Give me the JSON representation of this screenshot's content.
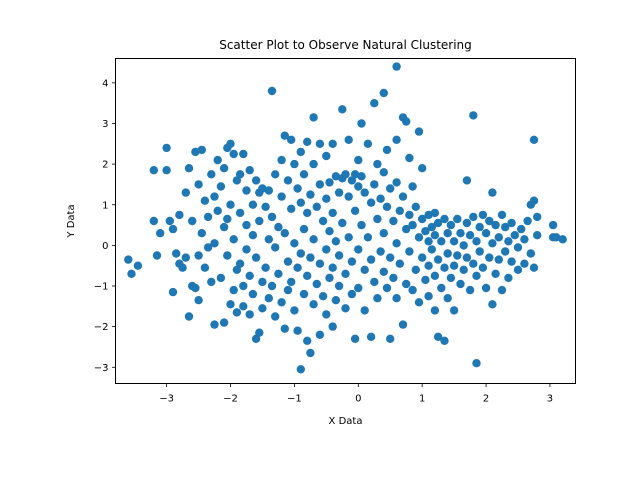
{
  "chart_data": {
    "type": "scatter",
    "title": "Scatter Plot to Observe Natural Clustering",
    "xlabel": "X Data",
    "ylabel": "Y Data",
    "xlim": [
      -3.8,
      3.4
    ],
    "ylim": [
      -3.4,
      4.6
    ],
    "x_ticks": [
      -3,
      -2,
      -1,
      0,
      1,
      2,
      3
    ],
    "y_ticks": [
      -3,
      -2,
      -1,
      0,
      1,
      2,
      3,
      4
    ],
    "grid": false,
    "legend": "none",
    "marker_color": "#1f77b4",
    "series": [
      {
        "points": [
          [
            -3.6,
            -0.35
          ],
          [
            -3.55,
            -0.7
          ],
          [
            -3.45,
            -0.5
          ],
          [
            -3.2,
            0.6
          ],
          [
            -3.2,
            1.85
          ],
          [
            -3.15,
            -0.25
          ],
          [
            -3.1,
            0.3
          ],
          [
            -3.0,
            1.85
          ],
          [
            -3.0,
            2.4
          ],
          [
            -2.95,
            0.6
          ],
          [
            -2.9,
            -1.15
          ],
          [
            -2.9,
            0.4
          ],
          [
            -2.85,
            -0.2
          ],
          [
            -2.8,
            -0.45
          ],
          [
            -2.8,
            0.75
          ],
          [
            -2.75,
            -0.55
          ],
          [
            -2.7,
            -0.3
          ],
          [
            -2.7,
            1.3
          ],
          [
            -2.65,
            -1.75
          ],
          [
            -2.65,
            1.9
          ],
          [
            -2.6,
            0.6
          ],
          [
            -2.6,
            -1.0
          ],
          [
            -2.55,
            2.3
          ],
          [
            -2.55,
            -1.05
          ],
          [
            -2.5,
            1.5
          ],
          [
            -2.5,
            -0.25
          ],
          [
            -2.5,
            -1.35
          ],
          [
            -2.45,
            2.35
          ],
          [
            -2.45,
            0.3
          ],
          [
            -2.4,
            1.1
          ],
          [
            -2.4,
            -0.55
          ],
          [
            -2.35,
            0.7
          ],
          [
            -2.35,
            -0.05
          ],
          [
            -2.3,
            1.75
          ],
          [
            -2.3,
            -0.9
          ],
          [
            -2.25,
            1.2
          ],
          [
            -2.25,
            0.05
          ],
          [
            -2.25,
            -1.95
          ],
          [
            -2.2,
            2.1
          ],
          [
            -2.2,
            0.85
          ],
          [
            -2.15,
            1.45
          ],
          [
            -2.15,
            -0.8
          ],
          [
            -2.1,
            1.9
          ],
          [
            -2.1,
            0.45
          ],
          [
            -2.1,
            -1.9
          ],
          [
            -2.05,
            2.4
          ],
          [
            -2.05,
            0.65
          ],
          [
            -2.05,
            -0.25
          ],
          [
            -2.0,
            2.5
          ],
          [
            -2.0,
            1.0
          ],
          [
            -2.0,
            -1.45
          ],
          [
            -1.95,
            2.25
          ],
          [
            -1.95,
            0.15
          ],
          [
            -1.95,
            -1.1
          ],
          [
            -1.9,
            1.6
          ],
          [
            -1.9,
            -0.6
          ],
          [
            -1.9,
            -1.65
          ],
          [
            -1.85,
            0.8
          ],
          [
            -1.85,
            1.75
          ],
          [
            -1.85,
            -0.45
          ],
          [
            -1.8,
            2.25
          ],
          [
            -1.8,
            -1.5
          ],
          [
            -1.8,
            -1.0
          ],
          [
            -1.75,
            1.35
          ],
          [
            -1.75,
            0.5
          ],
          [
            -1.75,
            -0.1
          ],
          [
            -1.7,
            1.85
          ],
          [
            -1.7,
            -0.75
          ],
          [
            -1.7,
            -1.7
          ],
          [
            -1.65,
            1.0
          ],
          [
            -1.65,
            0.25
          ],
          [
            -1.65,
            -1.2
          ],
          [
            -1.6,
            1.6
          ],
          [
            -1.6,
            -0.3
          ],
          [
            -1.6,
            -2.3
          ],
          [
            -1.55,
            1.3
          ],
          [
            -1.55,
            0.6
          ],
          [
            -1.55,
            -2.15
          ],
          [
            -1.5,
            1.4
          ],
          [
            -1.5,
            -0.9
          ],
          [
            -1.5,
            -1.55
          ],
          [
            -1.45,
            0.95
          ],
          [
            -1.45,
            -0.55
          ],
          [
            -1.4,
            1.35
          ],
          [
            -1.4,
            0.15
          ],
          [
            -1.4,
            -1.3
          ],
          [
            -1.35,
            3.8
          ],
          [
            -1.35,
            0.7
          ],
          [
            -1.35,
            -1.0
          ],
          [
            -1.3,
            1.75
          ],
          [
            -1.3,
            -0.05
          ],
          [
            -1.3,
            -1.75
          ],
          [
            -1.25,
            0.45
          ],
          [
            -1.25,
            -0.7
          ],
          [
            -1.2,
            2.1
          ],
          [
            -1.2,
            1.2
          ],
          [
            -1.2,
            -1.4
          ],
          [
            -1.15,
            2.7
          ],
          [
            -1.15,
            0.3
          ],
          [
            -1.15,
            -2.05
          ],
          [
            -1.1,
            1.6
          ],
          [
            -1.1,
            -0.4
          ],
          [
            -1.1,
            -1.1
          ],
          [
            -1.05,
            2.6
          ],
          [
            -1.05,
            0.9
          ],
          [
            -1.05,
            -0.9
          ],
          [
            -1.0,
            2.0
          ],
          [
            -1.0,
            0.05
          ],
          [
            -1.0,
            -1.6
          ],
          [
            -0.95,
            1.4
          ],
          [
            -0.95,
            -0.55
          ],
          [
            -0.95,
            -2.1
          ],
          [
            -0.9,
            2.3
          ],
          [
            -0.9,
            1.05
          ],
          [
            -0.9,
            -0.2
          ],
          [
            -0.9,
            -3.05
          ],
          [
            -0.85,
            1.75
          ],
          [
            -0.85,
            0.4
          ],
          [
            -0.85,
            -1.2
          ],
          [
            -0.8,
            2.55
          ],
          [
            -0.8,
            0.8
          ],
          [
            -0.8,
            -0.75
          ],
          [
            -0.8,
            -2.35
          ],
          [
            -0.75,
            1.25
          ],
          [
            -0.75,
            -0.3
          ],
          [
            -0.75,
            -2.65
          ],
          [
            -0.7,
            3.15
          ],
          [
            -0.7,
            2.0
          ],
          [
            -0.7,
            0.15
          ],
          [
            -0.7,
            -1.45
          ],
          [
            -0.65,
            0.95
          ],
          [
            -0.65,
            -0.95
          ],
          [
            -0.6,
            2.5
          ],
          [
            -0.6,
            1.5
          ],
          [
            -0.6,
            -0.45
          ],
          [
            -0.6,
            -2.2
          ],
          [
            -0.55,
            0.6
          ],
          [
            -0.55,
            -1.25
          ],
          [
            -0.5,
            2.2
          ],
          [
            -0.5,
            1.15
          ],
          [
            -0.5,
            -0.1
          ],
          [
            -0.5,
            -1.7
          ],
          [
            -0.45,
            1.55
          ],
          [
            -0.45,
            0.35
          ],
          [
            -0.45,
            -0.8
          ],
          [
            -0.4,
            2.5
          ],
          [
            -0.4,
            0.8
          ],
          [
            -0.4,
            -0.55
          ],
          [
            -0.4,
            -2.0
          ],
          [
            -0.35,
            1.7
          ],
          [
            -0.35,
            0.1
          ],
          [
            -0.35,
            -1.35
          ],
          [
            -0.3,
            1.3
          ],
          [
            -0.3,
            -0.25
          ],
          [
            -0.3,
            -1.0
          ],
          [
            -0.25,
            3.35
          ],
          [
            -0.25,
            1.65
          ],
          [
            -0.25,
            0.55
          ],
          [
            -0.2,
            1.75
          ],
          [
            -0.2,
            -0.7
          ],
          [
            -0.2,
            -1.55
          ],
          [
            -0.15,
            2.6
          ],
          [
            -0.15,
            1.2
          ],
          [
            -0.15,
            0.2
          ],
          [
            -0.1,
            1.6
          ],
          [
            -0.1,
            -0.4
          ],
          [
            -0.1,
            -1.2
          ],
          [
            -0.05,
            1.75
          ],
          [
            -0.05,
            0.85
          ],
          [
            -0.05,
            -2.3
          ],
          [
            0.0,
            2.1
          ],
          [
            0.0,
            1.45
          ],
          [
            0.0,
            -0.1
          ],
          [
            0.0,
            -1.05
          ],
          [
            0.05,
            3.0
          ],
          [
            0.05,
            1.7
          ],
          [
            0.05,
            0.5
          ],
          [
            0.1,
            1.3
          ],
          [
            0.1,
            -0.6
          ],
          [
            0.1,
            -1.6
          ],
          [
            0.15,
            2.5
          ],
          [
            0.15,
            0.2
          ],
          [
            0.2,
            1.05
          ],
          [
            0.2,
            -0.35
          ],
          [
            0.2,
            -2.25
          ],
          [
            0.25,
            3.5
          ],
          [
            0.25,
            1.5
          ],
          [
            0.25,
            -0.9
          ],
          [
            0.3,
            2.0
          ],
          [
            0.3,
            0.65
          ],
          [
            0.3,
            -1.3
          ],
          [
            0.35,
            1.15
          ],
          [
            0.35,
            -0.15
          ],
          [
            0.4,
            3.75
          ],
          [
            0.4,
            1.8
          ],
          [
            0.4,
            0.3
          ],
          [
            0.4,
            -0.65
          ],
          [
            0.45,
            2.35
          ],
          [
            0.45,
            0.95
          ],
          [
            0.45,
            -1.05
          ],
          [
            0.5,
            1.4
          ],
          [
            0.5,
            -0.3
          ],
          [
            0.5,
            -2.3
          ],
          [
            0.55,
            0.6
          ],
          [
            0.55,
            -0.8
          ],
          [
            0.6,
            4.4
          ],
          [
            0.6,
            2.6
          ],
          [
            0.6,
            1.55
          ],
          [
            0.6,
            0.05
          ],
          [
            0.6,
            -1.3
          ],
          [
            0.65,
            0.85
          ],
          [
            0.65,
            -0.45
          ],
          [
            0.7,
            3.15
          ],
          [
            0.7,
            1.2
          ],
          [
            0.7,
            -1.95
          ],
          [
            0.75,
            3.05
          ],
          [
            0.75,
            0.4
          ],
          [
            0.75,
            -0.95
          ],
          [
            0.8,
            2.15
          ],
          [
            0.8,
            0.75
          ],
          [
            0.8,
            -0.15
          ],
          [
            0.85,
            1.45
          ],
          [
            0.85,
            0.5
          ],
          [
            0.85,
            -1.1
          ],
          [
            0.9,
            0.95
          ],
          [
            0.9,
            -0.6
          ],
          [
            0.95,
            2.8
          ],
          [
            0.95,
            0.2
          ],
          [
            0.95,
            -1.4
          ],
          [
            1.0,
            0.65
          ],
          [
            1.0,
            -0.3
          ],
          [
            1.0,
            1.9
          ],
          [
            1.05,
            0.35
          ],
          [
            1.05,
            -0.85
          ],
          [
            1.1,
            0.75
          ],
          [
            1.1,
            0.1
          ],
          [
            1.1,
            -0.5
          ],
          [
            1.1,
            -1.25
          ],
          [
            1.15,
            0.45
          ],
          [
            1.15,
            -0.1
          ],
          [
            1.2,
            0.8
          ],
          [
            1.2,
            0.25
          ],
          [
            1.2,
            -0.75
          ],
          [
            1.2,
            -1.6
          ],
          [
            1.25,
            0.55
          ],
          [
            1.25,
            -0.35
          ],
          [
            1.25,
            -2.25
          ],
          [
            1.3,
            0.1
          ],
          [
            1.3,
            -1.05
          ],
          [
            1.35,
            0.65
          ],
          [
            1.35,
            -0.55
          ],
          [
            1.35,
            -2.35
          ],
          [
            1.4,
            0.3
          ],
          [
            1.4,
            -0.2
          ],
          [
            1.4,
            -1.3
          ],
          [
            1.45,
            0.5
          ],
          [
            1.45,
            -0.8
          ],
          [
            1.5,
            0.1
          ],
          [
            1.5,
            -0.5
          ],
          [
            1.5,
            -1.6
          ],
          [
            1.55,
            0.65
          ],
          [
            1.55,
            -0.25
          ],
          [
            1.6,
            0.3
          ],
          [
            1.6,
            -0.95
          ],
          [
            1.65,
            0.0
          ],
          [
            1.65,
            -0.6
          ],
          [
            1.7,
            1.6
          ],
          [
            1.7,
            0.55
          ],
          [
            1.7,
            -0.3
          ],
          [
            1.75,
            0.25
          ],
          [
            1.75,
            -1.1
          ],
          [
            1.8,
            3.2
          ],
          [
            1.8,
            0.7
          ],
          [
            1.8,
            -0.45
          ],
          [
            1.85,
            -2.9
          ],
          [
            1.85,
            0.1
          ],
          [
            1.85,
            -0.75
          ],
          [
            1.9,
            0.45
          ],
          [
            1.9,
            -0.15
          ],
          [
            1.95,
            0.75
          ],
          [
            1.95,
            -0.55
          ],
          [
            2.0,
            0.3
          ],
          [
            2.0,
            -1.05
          ],
          [
            2.05,
            0.6
          ],
          [
            2.05,
            -0.3
          ],
          [
            2.1,
            1.3
          ],
          [
            2.1,
            0.05
          ],
          [
            2.1,
            -1.45
          ],
          [
            2.15,
            0.5
          ],
          [
            2.15,
            -0.7
          ],
          [
            2.2,
            0.2
          ],
          [
            2.2,
            -0.35
          ],
          [
            2.25,
            0.75
          ],
          [
            2.25,
            -1.1
          ],
          [
            2.3,
            0.45
          ],
          [
            2.3,
            -0.15
          ],
          [
            2.35,
            0.1
          ],
          [
            2.35,
            -0.8
          ],
          [
            2.4,
            0.55
          ],
          [
            2.4,
            -0.4
          ],
          [
            2.45,
            0.25
          ],
          [
            2.5,
            -0.05
          ],
          [
            2.5,
            -0.6
          ],
          [
            2.55,
            0.4
          ],
          [
            2.6,
            0.15
          ],
          [
            2.6,
            -0.45
          ],
          [
            2.65,
            0.6
          ],
          [
            2.7,
            1.0
          ],
          [
            2.7,
            -0.2
          ],
          [
            2.75,
            2.6
          ],
          [
            2.75,
            1.1
          ],
          [
            2.75,
            -0.55
          ],
          [
            2.8,
            0.7
          ],
          [
            2.8,
            0.25
          ],
          [
            3.05,
            0.5
          ],
          [
            3.05,
            0.2
          ],
          [
            3.1,
            0.2
          ],
          [
            3.2,
            0.15
          ]
        ]
      }
    ]
  }
}
